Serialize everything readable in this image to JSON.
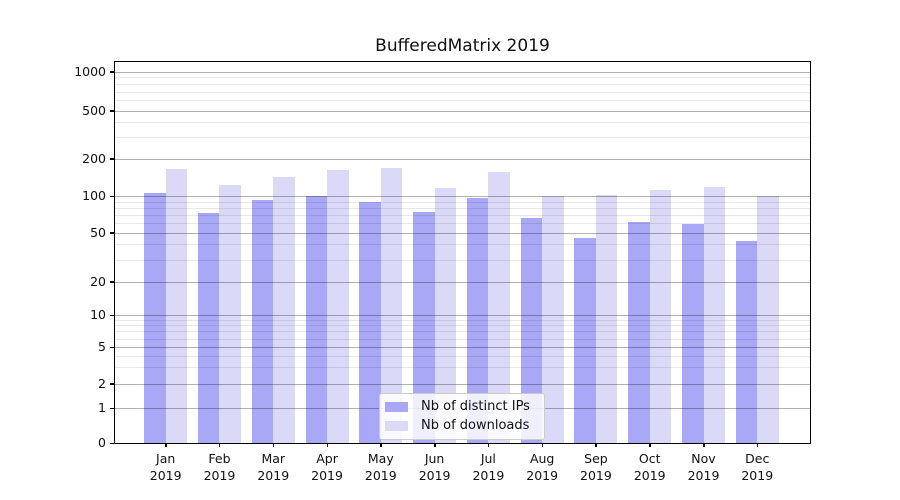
{
  "chart_data": {
    "type": "bar",
    "title": "BufferedMatrix 2019",
    "categories": [
      "Jan",
      "Feb",
      "Mar",
      "Apr",
      "May",
      "Jun",
      "Jul",
      "Aug",
      "Sep",
      "Oct",
      "Nov",
      "Dec"
    ],
    "category_year": "2019",
    "series": [
      {
        "name": "Nb of distinct IPs",
        "color": "#a8a8f6",
        "values": [
          105,
          73,
          92,
          100,
          89,
          74,
          97,
          66,
          45,
          61,
          59,
          43
        ]
      },
      {
        "name": "Nb of downloads",
        "color": "#dadaf8",
        "values": [
          165,
          123,
          143,
          162,
          167,
          116,
          156,
          100,
          101,
          111,
          119,
          100
        ]
      }
    ],
    "yscale": "symlog",
    "yticks": [
      0,
      1,
      2,
      5,
      10,
      20,
      50,
      100,
      200,
      500,
      1000
    ],
    "ylim": [
      0,
      1200
    ],
    "grid": "both",
    "legend_position": "lower center",
    "colors": {
      "major_grid": "#b3b3b3",
      "minor_grid": "#e8e8e8",
      "axis": "#000000",
      "background": "#ffffff"
    }
  }
}
